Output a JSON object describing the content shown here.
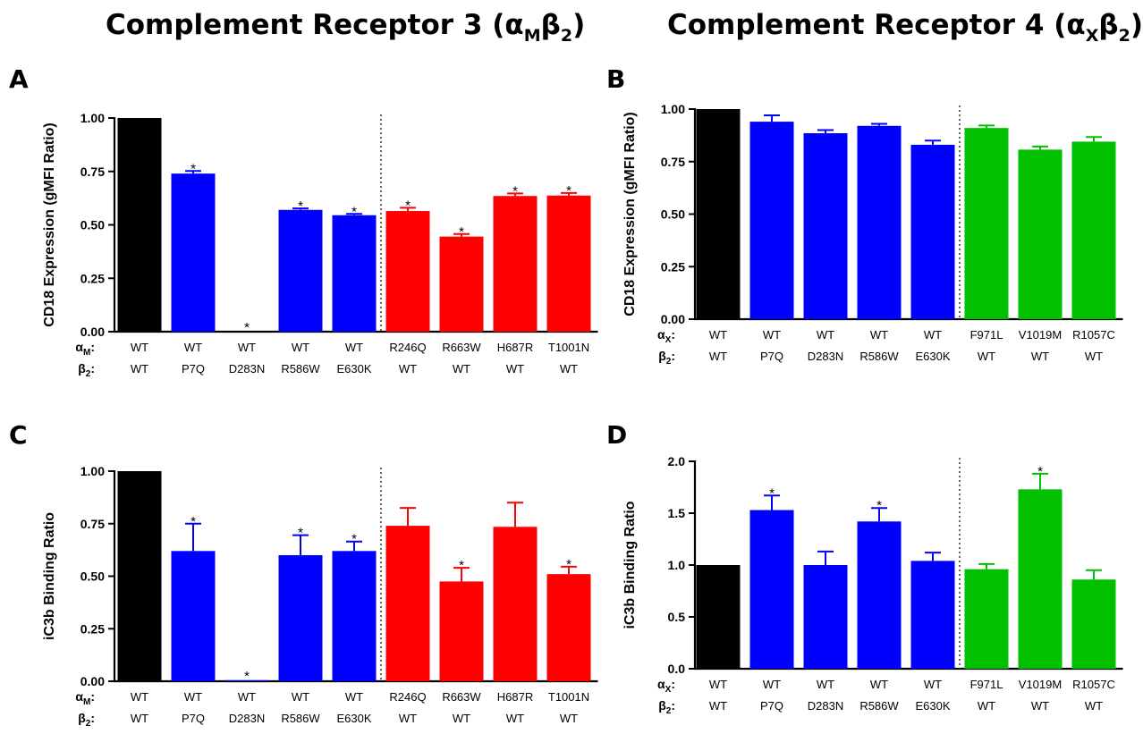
{
  "header": {
    "cr3_title": "Complement Receptor 3 (α",
    "cr3_sub1": "M",
    "cr3_mid": "β",
    "cr3_sub2": "2",
    "cr3_end": ")",
    "cr4_title": "Complement Receptor 4 (α",
    "cr4_sub1": "X",
    "cr4_mid": "β",
    "cr4_sub2": "2",
    "cr4_end": ")"
  },
  "colors": {
    "black": "#000000",
    "blue": "#0000ff",
    "red": "#ff0000",
    "green": "#00c000"
  },
  "chart_data": [
    {
      "id": "A",
      "panel_label": "A",
      "type": "bar",
      "ylabel": "CD18 Expression (gMFI Ratio)",
      "ylim": [
        0,
        1.0
      ],
      "yticks": [
        0.0,
        0.25,
        0.5,
        0.75,
        1.0
      ],
      "ytick_labels": [
        "0.00",
        "0.25",
        "0.50",
        "0.75",
        "1.00"
      ],
      "alpha_label": "α",
      "alpha_sub": "M",
      "beta_label": "β",
      "beta_sub": "2",
      "categories_alpha": [
        "WT",
        "WT",
        "WT",
        "WT",
        "WT",
        "R246Q",
        "R663W",
        "H687R",
        "T1001N"
      ],
      "categories_beta": [
        "WT",
        "P7Q",
        "D283N",
        "R586W",
        "E630K",
        "WT",
        "WT",
        "WT",
        "WT"
      ],
      "values": [
        1.0,
        0.74,
        0.0,
        0.57,
        0.545,
        0.565,
        0.445,
        0.635,
        0.637
      ],
      "errors": [
        0,
        0.012,
        0,
        0.007,
        0.006,
        0.015,
        0.012,
        0.012,
        0.012
      ],
      "significant": [
        false,
        true,
        true,
        true,
        true,
        true,
        true,
        true,
        true
      ],
      "colors": [
        "black",
        "blue",
        "blue",
        "blue",
        "blue",
        "red",
        "red",
        "red",
        "red"
      ],
      "divider_after": 4
    },
    {
      "id": "B",
      "panel_label": "B",
      "type": "bar",
      "ylabel": "CD18 Expression (gMFI Ratio)",
      "ylim": [
        0,
        1.0
      ],
      "yticks": [
        0.0,
        0.25,
        0.5,
        0.75,
        1.0
      ],
      "ytick_labels": [
        "0.00",
        "0.25",
        "0.50",
        "0.75",
        "1.00"
      ],
      "alpha_label": "α",
      "alpha_sub": "X",
      "beta_label": "β",
      "beta_sub": "2",
      "categories_alpha": [
        "WT",
        "WT",
        "WT",
        "WT",
        "WT",
        "F971L",
        "V1019M",
        "R1057C"
      ],
      "categories_beta": [
        "WT",
        "P7Q",
        "D283N",
        "R586W",
        "E630K",
        "WT",
        "WT",
        "WT"
      ],
      "values": [
        1.0,
        0.94,
        0.885,
        0.92,
        0.83,
        0.91,
        0.807,
        0.845
      ],
      "errors": [
        0,
        0.03,
        0.015,
        0.01,
        0.02,
        0.012,
        0.015,
        0.022
      ],
      "significant": [
        false,
        false,
        false,
        false,
        false,
        false,
        false,
        false
      ],
      "colors": [
        "black",
        "blue",
        "blue",
        "blue",
        "blue",
        "green",
        "green",
        "green"
      ],
      "divider_after": 4
    },
    {
      "id": "C",
      "panel_label": "C",
      "type": "bar",
      "ylabel": "iC3b Binding Ratio",
      "ylim": [
        0,
        1.0
      ],
      "yticks": [
        0.0,
        0.25,
        0.5,
        0.75,
        1.0
      ],
      "ytick_labels": [
        "0.00",
        "0.25",
        "0.50",
        "0.75",
        "1.00"
      ],
      "alpha_label": "α",
      "alpha_sub": "M",
      "beta_label": "β",
      "beta_sub": "2",
      "categories_alpha": [
        "WT",
        "WT",
        "WT",
        "WT",
        "WT",
        "R246Q",
        "R663W",
        "H687R",
        "T1001N"
      ],
      "categories_beta": [
        "WT",
        "P7Q",
        "D283N",
        "R586W",
        "E630K",
        "WT",
        "WT",
        "WT",
        "WT"
      ],
      "values": [
        1.0,
        0.62,
        0.005,
        0.6,
        0.62,
        0.74,
        0.475,
        0.735,
        0.51
      ],
      "errors": [
        0,
        0.13,
        0,
        0.095,
        0.045,
        0.085,
        0.065,
        0.115,
        0.035
      ],
      "significant": [
        false,
        true,
        true,
        true,
        true,
        false,
        true,
        false,
        true
      ],
      "colors": [
        "black",
        "blue",
        "blue",
        "blue",
        "blue",
        "red",
        "red",
        "red",
        "red"
      ],
      "divider_after": 4
    },
    {
      "id": "D",
      "panel_label": "D",
      "type": "bar",
      "ylabel": "iC3b Binding Ratio",
      "ylim": [
        0,
        2.0
      ],
      "yticks": [
        0.0,
        0.5,
        1.0,
        1.5,
        2.0
      ],
      "ytick_labels": [
        "0.0",
        "0.5",
        "1.0",
        "1.5",
        "2.0"
      ],
      "alpha_label": "α",
      "alpha_sub": "X",
      "beta_label": "β",
      "beta_sub": "2",
      "categories_alpha": [
        "WT",
        "WT",
        "WT",
        "WT",
        "WT",
        "F971L",
        "V1019M",
        "R1057C"
      ],
      "categories_beta": [
        "WT",
        "P7Q",
        "D283N",
        "R586W",
        "E630K",
        "WT",
        "WT",
        "WT"
      ],
      "values": [
        1.0,
        1.53,
        1.0,
        1.42,
        1.04,
        0.96,
        1.73,
        0.86
      ],
      "errors": [
        0,
        0.14,
        0.13,
        0.13,
        0.08,
        0.05,
        0.15,
        0.09
      ],
      "significant": [
        false,
        true,
        false,
        true,
        false,
        false,
        true,
        false
      ],
      "colors": [
        "black",
        "blue",
        "blue",
        "blue",
        "blue",
        "green",
        "green",
        "green"
      ],
      "divider_after": 4
    }
  ]
}
